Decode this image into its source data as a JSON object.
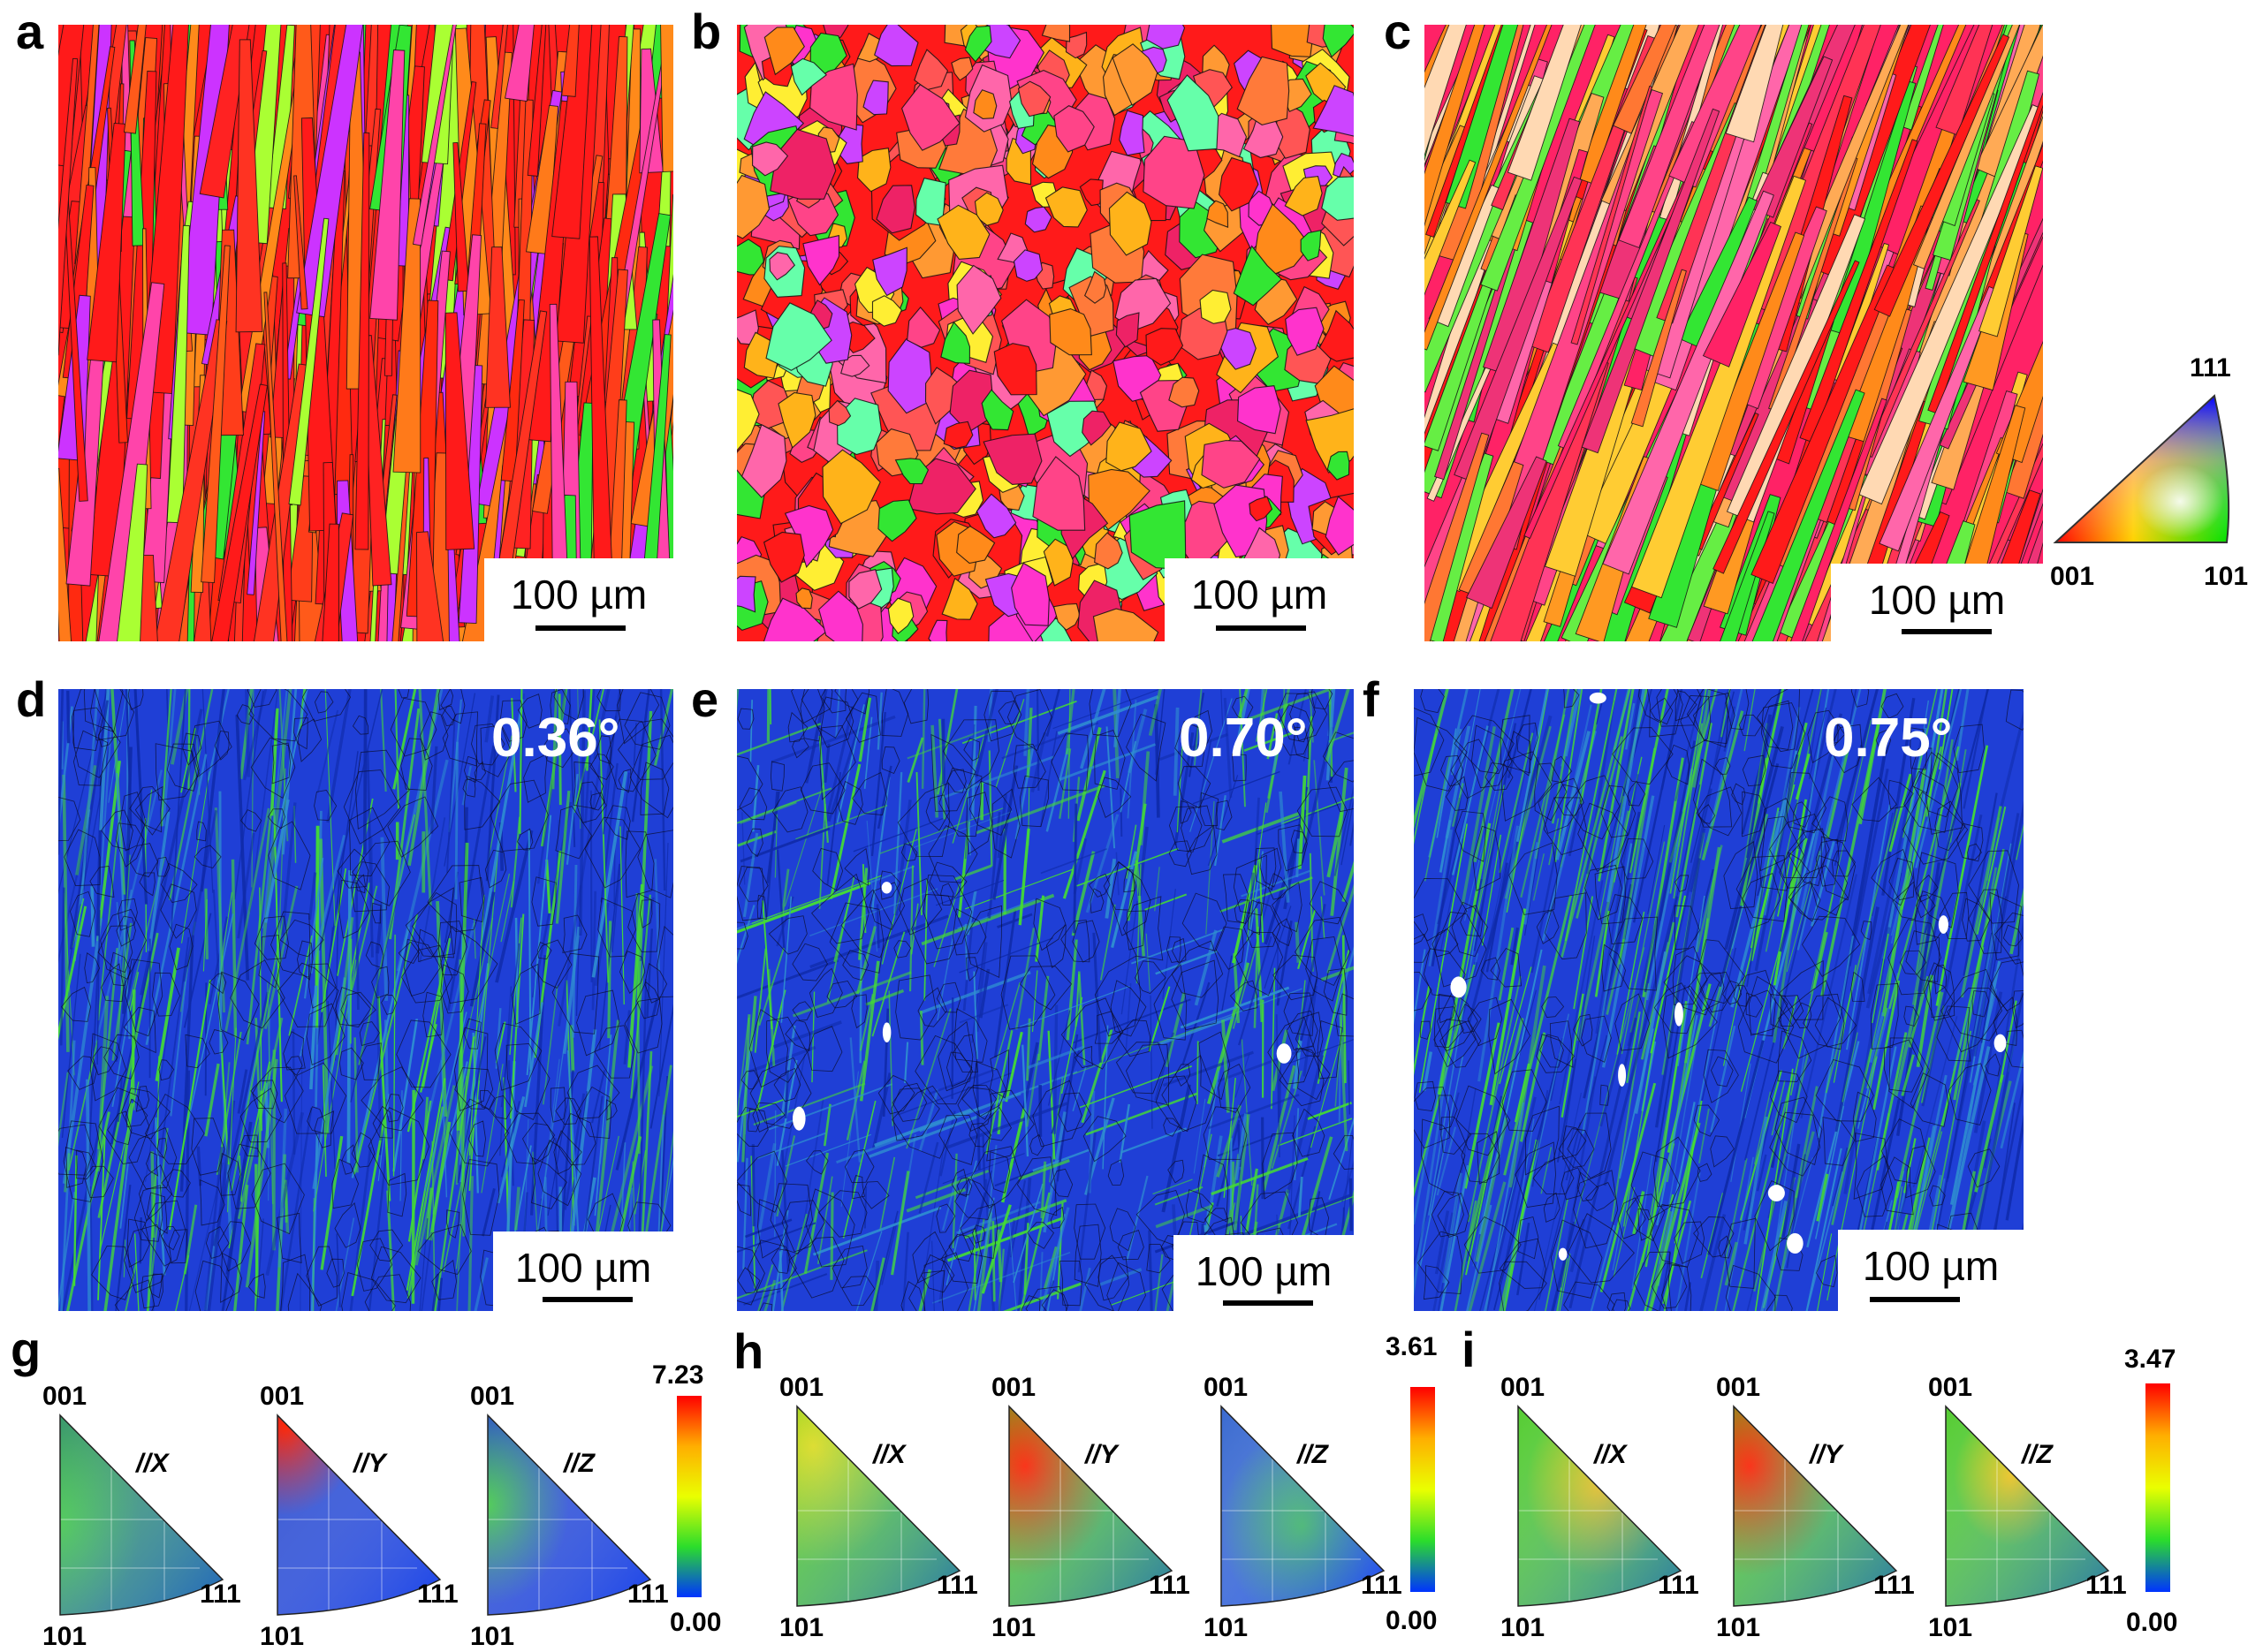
{
  "panels": {
    "a": "a",
    "b": "b",
    "c": "c",
    "d": "d",
    "e": "e",
    "f": "f",
    "g": "g",
    "h": "h",
    "i": "i"
  },
  "scale_bar_label": "100 µm",
  "kam_values": {
    "d": "0.36°",
    "e": "0.70°",
    "f": "0.75°"
  },
  "ipf_key": {
    "top": "111",
    "left": "001",
    "right": "101"
  },
  "pole_figures": {
    "corner_001": "001",
    "corner_101": "101",
    "corner_111": "111",
    "axes": [
      "//X",
      "//Y",
      "//Z"
    ]
  },
  "colorbars": {
    "g": {
      "max": "7.23",
      "min": "0.00"
    },
    "h": {
      "max": "3.61",
      "min": "0.00"
    },
    "i": {
      "max": "3.47",
      "min": "0.00"
    }
  },
  "colors": {
    "ipf_red": "#ff1a1a",
    "ipf_orange": "#ff8a1a",
    "ipf_magenta": "#ff33cc",
    "ipf_green": "#33e633",
    "ipf_blue": "#3355ff",
    "kam_blue": "#1f3fd6",
    "kam_green": "#44dd33"
  }
}
